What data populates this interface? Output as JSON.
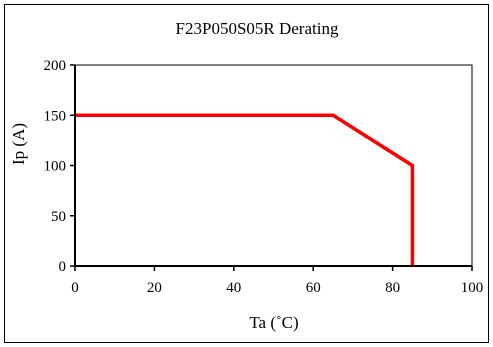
{
  "chart_data": {
    "type": "line",
    "title": "F23P050S05R Derating",
    "xlabel": "Ta (˚C)",
    "ylabel": "Ip (A)",
    "xlim": [
      0,
      100
    ],
    "ylim": [
      0,
      200
    ],
    "x_ticks": [
      0,
      20,
      40,
      60,
      80,
      100
    ],
    "y_ticks": [
      0,
      50,
      100,
      150,
      200
    ],
    "grid": {
      "vertical_major": [
        20,
        40,
        60,
        80
      ],
      "horizontal_major": [
        50,
        100,
        150
      ],
      "horizontal_minor_dashed": [
        25,
        75,
        125,
        175
      ]
    },
    "series": [
      {
        "color": "#ff0000",
        "points": [
          [
            0,
            150
          ],
          [
            65,
            150
          ],
          [
            85,
            100
          ],
          [
            85,
            0
          ]
        ]
      }
    ]
  }
}
